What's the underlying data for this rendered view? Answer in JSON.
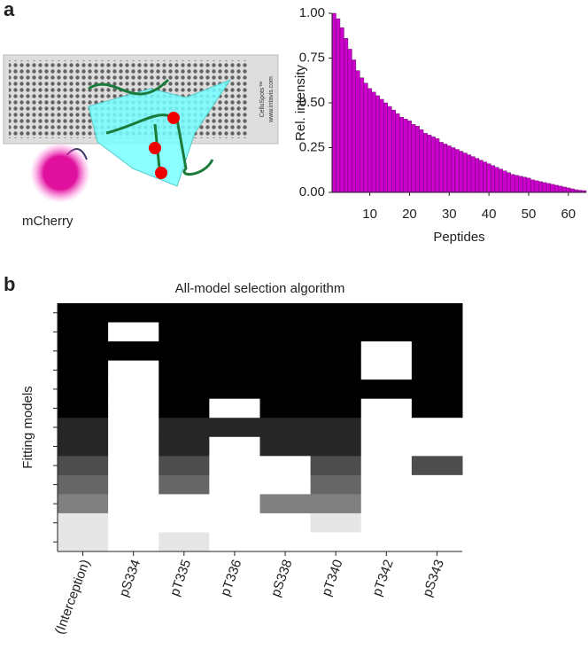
{
  "panels": [
    "a",
    "b"
  ],
  "illustration": {
    "label": "mCherry",
    "slide_texts": [
      "CelluSpots™",
      "www.intavis.com"
    ]
  },
  "chart_data": [
    {
      "type": "bar",
      "y_label": "Rel. intensity",
      "x_label": "Peptides",
      "color": "#cc00cc",
      "x": [
        1,
        2,
        3,
        4,
        5,
        6,
        7,
        8,
        9,
        10,
        11,
        12,
        13,
        14,
        15,
        16,
        17,
        18,
        19,
        20,
        21,
        22,
        23,
        24,
        25,
        26,
        27,
        28,
        29,
        30,
        31,
        32,
        33,
        34,
        35,
        36,
        37,
        38,
        39,
        40,
        41,
        42,
        43,
        44,
        45,
        46,
        47,
        48,
        49,
        50,
        51,
        52,
        53,
        54,
        55,
        56,
        57,
        58,
        59,
        60,
        61,
        62,
        63,
        64
      ],
      "values": [
        1.0,
        0.97,
        0.92,
        0.86,
        0.8,
        0.74,
        0.68,
        0.64,
        0.61,
        0.58,
        0.56,
        0.54,
        0.52,
        0.5,
        0.48,
        0.46,
        0.44,
        0.42,
        0.41,
        0.4,
        0.38,
        0.37,
        0.35,
        0.33,
        0.32,
        0.31,
        0.3,
        0.28,
        0.27,
        0.26,
        0.25,
        0.24,
        0.23,
        0.22,
        0.21,
        0.2,
        0.19,
        0.18,
        0.17,
        0.16,
        0.15,
        0.14,
        0.13,
        0.12,
        0.11,
        0.1,
        0.095,
        0.09,
        0.085,
        0.08,
        0.07,
        0.065,
        0.06,
        0.055,
        0.05,
        0.045,
        0.04,
        0.035,
        0.03,
        0.025,
        0.02,
        0.015,
        0.012,
        0.01
      ],
      "xlim": [
        0.5,
        64.5
      ],
      "xticks": [
        10,
        20,
        30,
        40,
        50,
        60
      ],
      "ylim": [
        0,
        1
      ],
      "yticks": [
        {
          "value": 0,
          "label": "0.00"
        },
        {
          "value": 0.25,
          "label": "0.25"
        },
        {
          "value": 0.5,
          "label": "0.50"
        },
        {
          "value": 0.75,
          "label": "0.75"
        },
        {
          "value": 1,
          "label": "1.00"
        }
      ]
    },
    {
      "type": "heatmap",
      "title": "All-model selection algorithm",
      "y_label": "Fitting models",
      "color": "#000000",
      "categories": [
        "(Interception)",
        "pS334",
        "pT335",
        "pT336",
        "pS338",
        "pT340",
        "pT342",
        "pS343"
      ],
      "values": [
        [
          1,
          1,
          1,
          1,
          1,
          1,
          0.85,
          0.85,
          0.7,
          0.6,
          0.5,
          0.1,
          0.1
        ],
        [
          1,
          0,
          1,
          0,
          0,
          0,
          0,
          0,
          0,
          0,
          0,
          0,
          0
        ],
        [
          1,
          1,
          1,
          1,
          1,
          1,
          0.85,
          0.85,
          0.7,
          0.6,
          0,
          0,
          0.1
        ],
        [
          1,
          1,
          1,
          1,
          1,
          0,
          0.85,
          0,
          0,
          0,
          0,
          0,
          0
        ],
        [
          1,
          1,
          1,
          1,
          1,
          1,
          0.85,
          0.85,
          0,
          0,
          0.5,
          0,
          0
        ],
        [
          1,
          1,
          1,
          1,
          1,
          1,
          0.85,
          0.85,
          0.7,
          0.6,
          0.5,
          0.1,
          0
        ],
        [
          1,
          1,
          0,
          0,
          1,
          0,
          0,
          0,
          0,
          0,
          0,
          0,
          0
        ],
        [
          1,
          1,
          1,
          1,
          1,
          1,
          0,
          0,
          0.7,
          0,
          0,
          0,
          0
        ]
      ]
    }
  ]
}
